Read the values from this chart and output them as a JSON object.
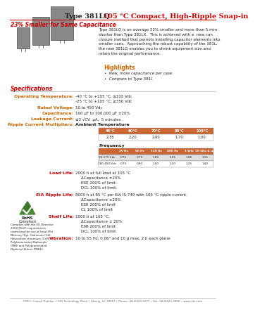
{
  "title_black": "Type 381LQ",
  "title_red": " 105 °C Compact, High-Ripple Snap-in",
  "subtitle": "23% Smaller for Same Capacitance",
  "bg_color": "#ffffff",
  "red_color": "#cc0000",
  "orange_color": "#cc6600",
  "body_text": "Type 381LQ is on average 23% smaller and more than 5 mm\nshorter than Type 381LX.  This is achieved with a  new can\nclosure method that permits installing capacitor elements into\nsmaller cans.  Approaching the robust capability of the 381L,\nthe new 381LQ enables you to shrink equipment size and\nretain the original performance.",
  "highlights_title": "Highlights",
  "highlights": [
    "New, more capacitance per case",
    "Compare to Type 381L"
  ],
  "specs_title": "Specifications",
  "spec_labels": [
    "Operating Temperature:",
    "Rated Voltage:",
    "Capacitance:",
    "Leakage Current:",
    "Ripple Current Multipliers:"
  ],
  "spec_values": [
    "-40 °C to +105 °C, ≤315 Vdc\n-25 °C to +105 °C, ≥350 Vdc",
    "10 to 450 Vdc",
    "100 μF to 100,000 μF ±20%",
    "≤3 √CV  μA,  5 minutes",
    "Ambient Temperature"
  ],
  "ambient_temp_headers": [
    "45°C",
    "60°C",
    "70°C",
    "85°C",
    "105°C"
  ],
  "ambient_temp_values": [
    "2.35",
    "2.20",
    "2.00",
    "1.70",
    "1.00"
  ],
  "freq_label": "Frequency",
  "freq_headers": [
    "25 Hz",
    "50 Hz",
    "120 Hz",
    "400 Hz",
    "1 kHz",
    "10 kHz & up"
  ],
  "freq_row1_label": "50-175 Vdc",
  "freq_row1": [
    "0.75",
    "0.75",
    "1.00",
    "1.05",
    "1.08",
    "1.15"
  ],
  "freq_row2_label": "180-450 Vdc",
  "freq_row2": [
    "0.75",
    "0.80",
    "1.00",
    "1.20",
    "1.25",
    "1.40"
  ],
  "load_life_label": "Load Life:",
  "load_life_text": "2000 h at full load at 105 °C\nΔCapacitance ±20%\nESR 200% of limit\nDCL 100% of limit",
  "eia_label": "EIA Ripple Life:",
  "eia_text": "8000 h at 85 °C per EIA IS-749 with 105 °C ripple current.\nΔCapacitance ±20%\nESR 200% of limit\nCL 100% of limit",
  "shelf_label": "Shelf Life:",
  "shelf_text": "1000 h at 105 °C,\nΔCapacitance ± 20%\nESR 200% of limit\nDCL 100% of limit",
  "vib_label": "Vibration:",
  "vib_text": "10 to 55 Hz, 0.06\" and 10 g max, 2 h each plane",
  "footer": "CDE® Cornell Dubilier • 140 Technology Place • Liberty, SC 29657 • Phone: (864)843-2277 • Fax: (864)843-3800 • www.cde.com",
  "rohs_text": "Complies with the EU Directive\n2002/95/EC requirements\nrestricting the use of Lead (Pb),\nMercury (Hg), Cadmium (Cd),\nHexavalent chromium (CrVI),\nPolybrominated Biphenyls\n(PBB) and Polybrominated\nDiphenyl Ethers (PBDE)."
}
